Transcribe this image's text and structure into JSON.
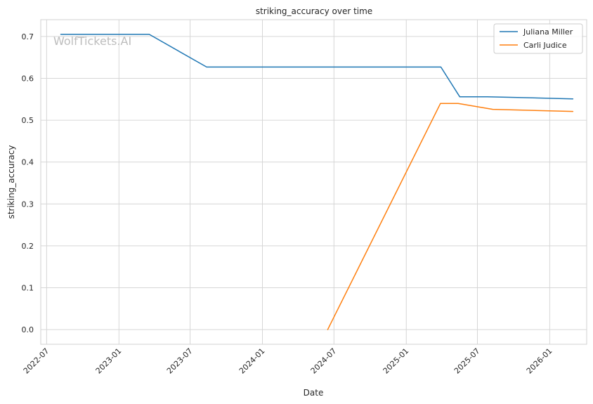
{
  "chart_data": {
    "type": "line",
    "title": "striking_accuracy over time",
    "xlabel": "Date",
    "ylabel": "striking_accuracy",
    "watermark": "WolfTickets.AI",
    "x_ticks": [
      "2022-07",
      "2023-01",
      "2023-07",
      "2024-01",
      "2024-07",
      "2025-01",
      "2025-07",
      "2026-01"
    ],
    "y_ticks": [
      "0.0",
      "0.1",
      "0.2",
      "0.3",
      "0.4",
      "0.5",
      "0.6",
      "0.7"
    ],
    "xlim": [
      "2022-06-16",
      "2026-04-05"
    ],
    "ylim": [
      -0.035,
      0.74
    ],
    "grid": true,
    "legend_position": "top-right",
    "colors": {
      "Juliana Miller": "#1f77b4",
      "Carli Judice": "#ff7f0e"
    },
    "series": [
      {
        "name": "Juliana Miller",
        "color": "#1f77b4",
        "points": [
          {
            "x": "2022-08-06",
            "y": 0.705
          },
          {
            "x": "2023-03-19",
            "y": 0.705
          },
          {
            "x": "2023-08-12",
            "y": 0.627
          },
          {
            "x": "2025-03-30",
            "y": 0.627
          },
          {
            "x": "2025-05-17",
            "y": 0.556
          },
          {
            "x": "2025-07-26",
            "y": 0.556
          },
          {
            "x": "2026-03-01",
            "y": 0.551
          }
        ]
      },
      {
        "name": "Carli Judice",
        "color": "#ff7f0e",
        "points": [
          {
            "x": "2024-06-15",
            "y": 0.0
          },
          {
            "x": "2025-03-29",
            "y": 0.54
          },
          {
            "x": "2025-05-13",
            "y": 0.54
          },
          {
            "x": "2025-08-09",
            "y": 0.526
          },
          {
            "x": "2026-03-01",
            "y": 0.521
          }
        ]
      }
    ]
  }
}
